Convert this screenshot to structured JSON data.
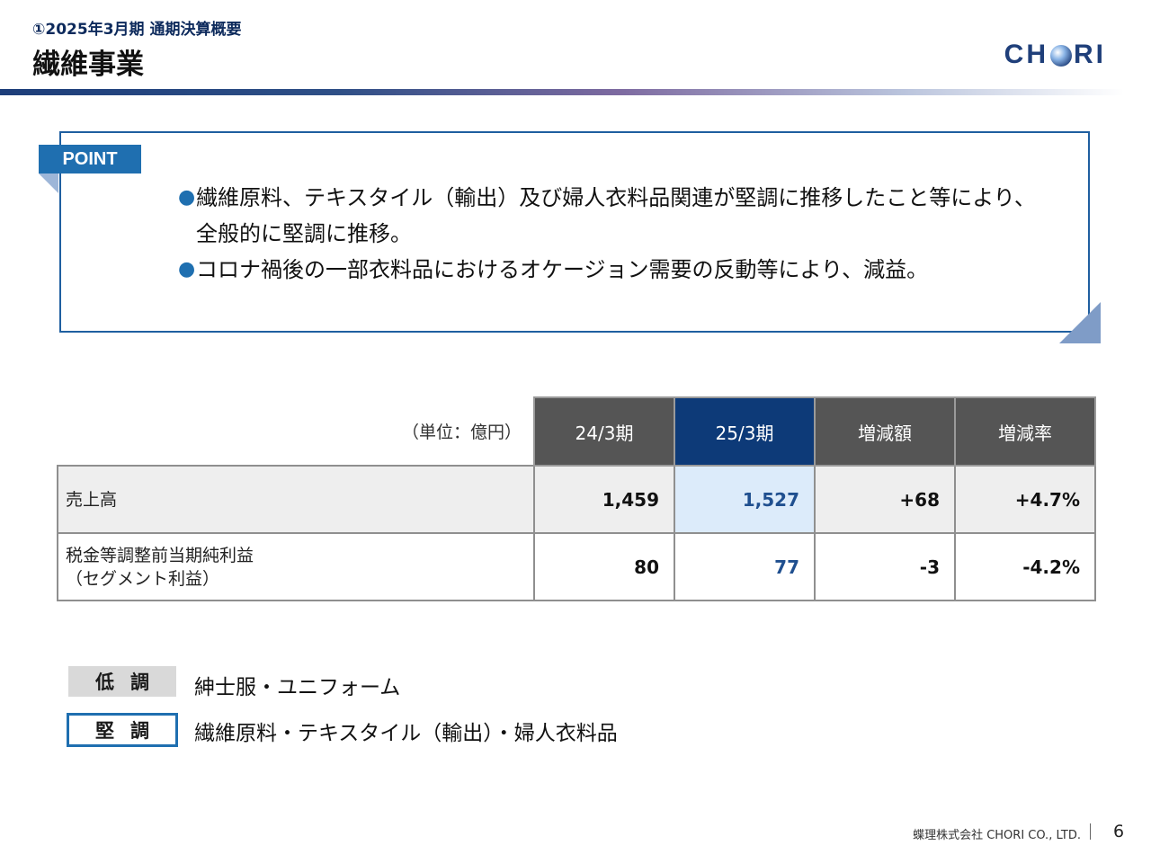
{
  "header": {
    "subtitle": "①2025年3月期 通期決算概要",
    "title": "繊維事業",
    "logo": {
      "pre": "CH",
      "post": "RI"
    }
  },
  "point": {
    "tag": "POINT",
    "bullets": [
      "繊維原料、テキスタイル（輸出）及び婦人衣料品関連が堅調に推移したこと等により、全般的に堅調に推移。",
      "コロナ禍後の一部衣料品におけるオケージョン需要の反動等により、減益。"
    ]
  },
  "table": {
    "unit": "（単位：億円）",
    "columns": [
      "24/3期",
      "25/3期",
      "増減額",
      "増減率"
    ],
    "rows": [
      {
        "label": "売上高",
        "label2": "",
        "values": [
          "1,459",
          "1,527",
          "+68",
          "+4.7%"
        ]
      },
      {
        "label": "税金等調整前当期純利益",
        "label2": "（セグメント利益）",
        "values": [
          "80",
          "77",
          "-3",
          "-4.2%"
        ]
      }
    ]
  },
  "legend": {
    "weak_tag": "低調",
    "weak_text": "紳士服・ユニフォーム",
    "strong_tag": "堅調",
    "strong_text": "繊維原料・テキスタイル（輸出）・婦人衣料品"
  },
  "footer": {
    "company": "蝶理株式会社 CHORI CO., LTD.",
    "page": "6"
  },
  "colors": {
    "accent": "#1f6fb0",
    "navy": "#0d3a78",
    "header_gray": "#555555"
  }
}
